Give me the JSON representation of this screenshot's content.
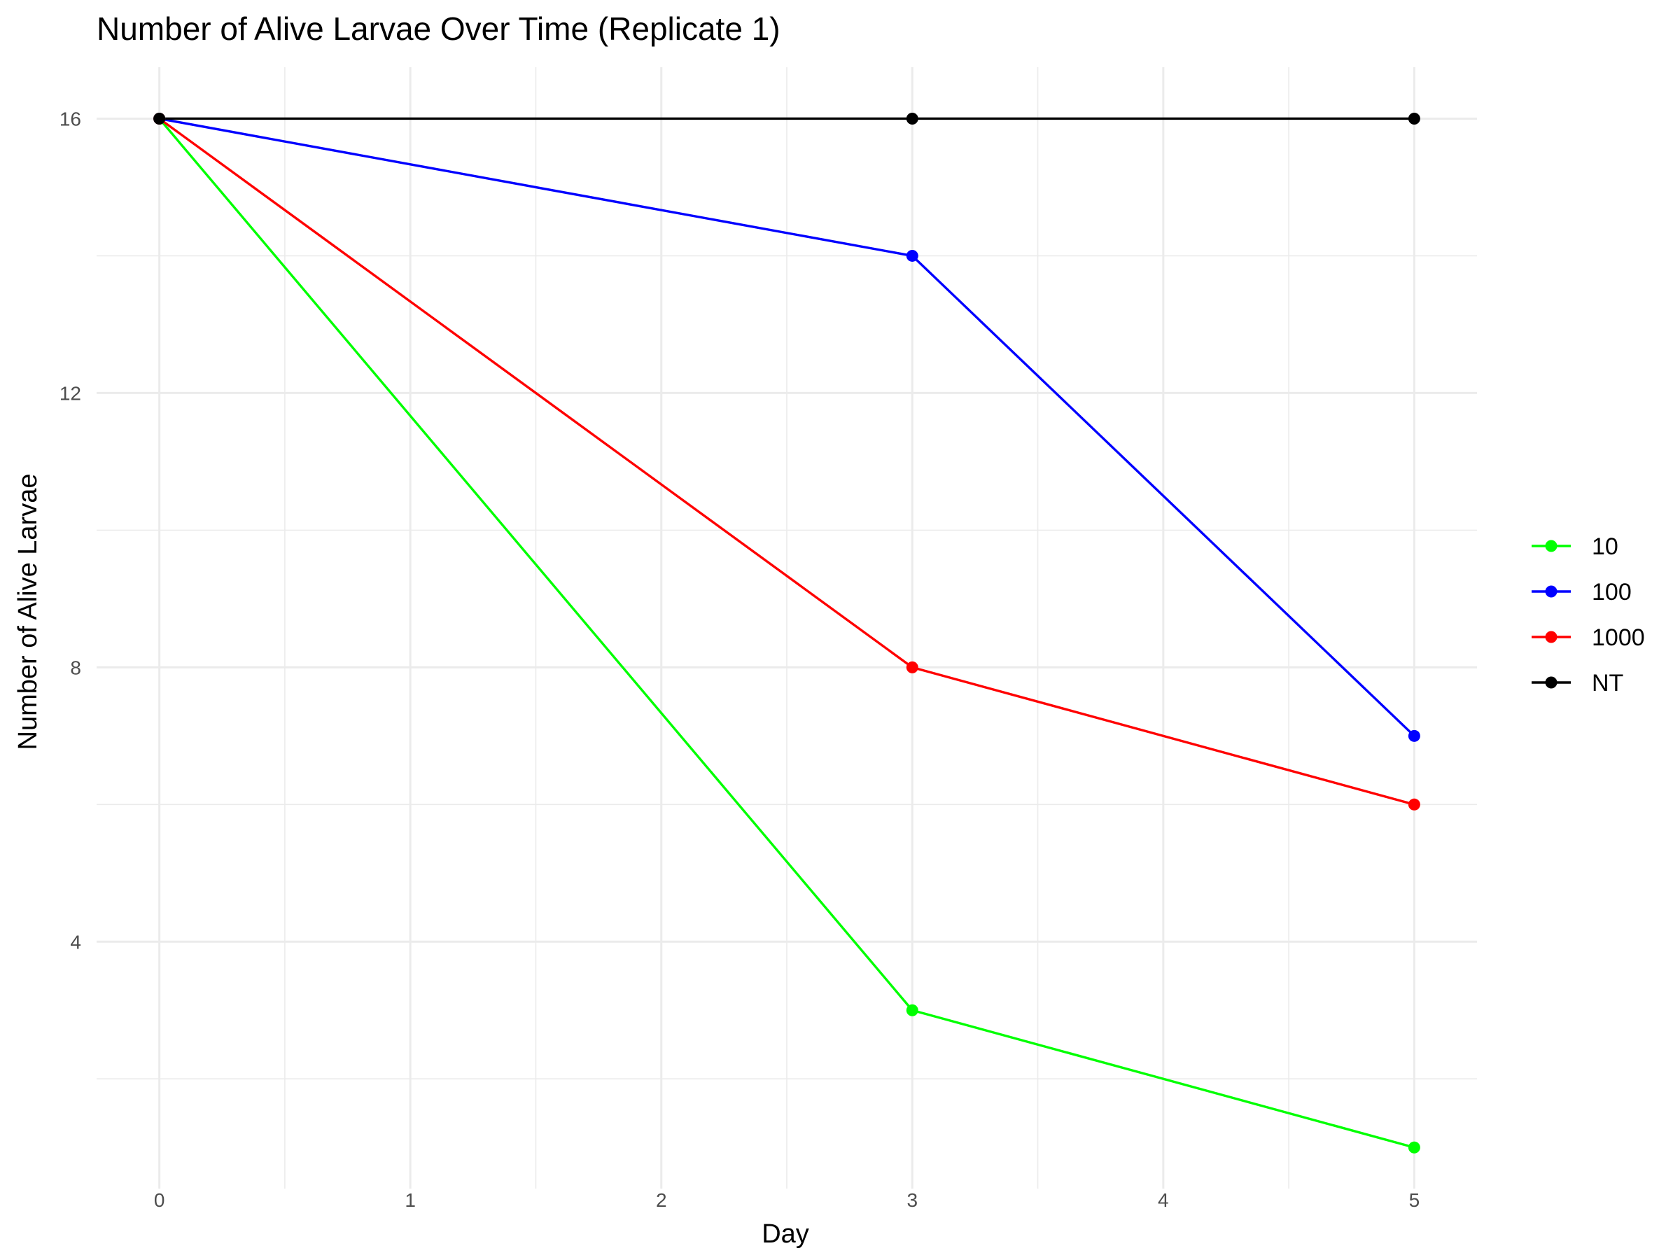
{
  "chart_data": {
    "type": "line",
    "title": "Number of Alive Larvae Over Time (Replicate 1)",
    "xlabel": "Day",
    "ylabel": "Number of Alive Larvae",
    "x": [
      0,
      3,
      5
    ],
    "xticks": [
      0,
      1,
      2,
      3,
      4,
      5
    ],
    "yticks": [
      4,
      8,
      12,
      16
    ],
    "xlim": [
      -0.25,
      5.25
    ],
    "ylim": [
      0.4,
      16.75
    ],
    "grid": true,
    "legend_position": "right",
    "series": [
      {
        "name": "10",
        "color": "#00ff00",
        "values": [
          16,
          3,
          1
        ]
      },
      {
        "name": "100",
        "color": "#0000ff",
        "values": [
          16,
          14,
          7
        ]
      },
      {
        "name": "1000",
        "color": "#ff0000",
        "values": [
          16,
          8,
          6
        ]
      },
      {
        "name": "NT",
        "color": "#000000",
        "values": [
          16,
          16,
          16
        ]
      }
    ]
  }
}
